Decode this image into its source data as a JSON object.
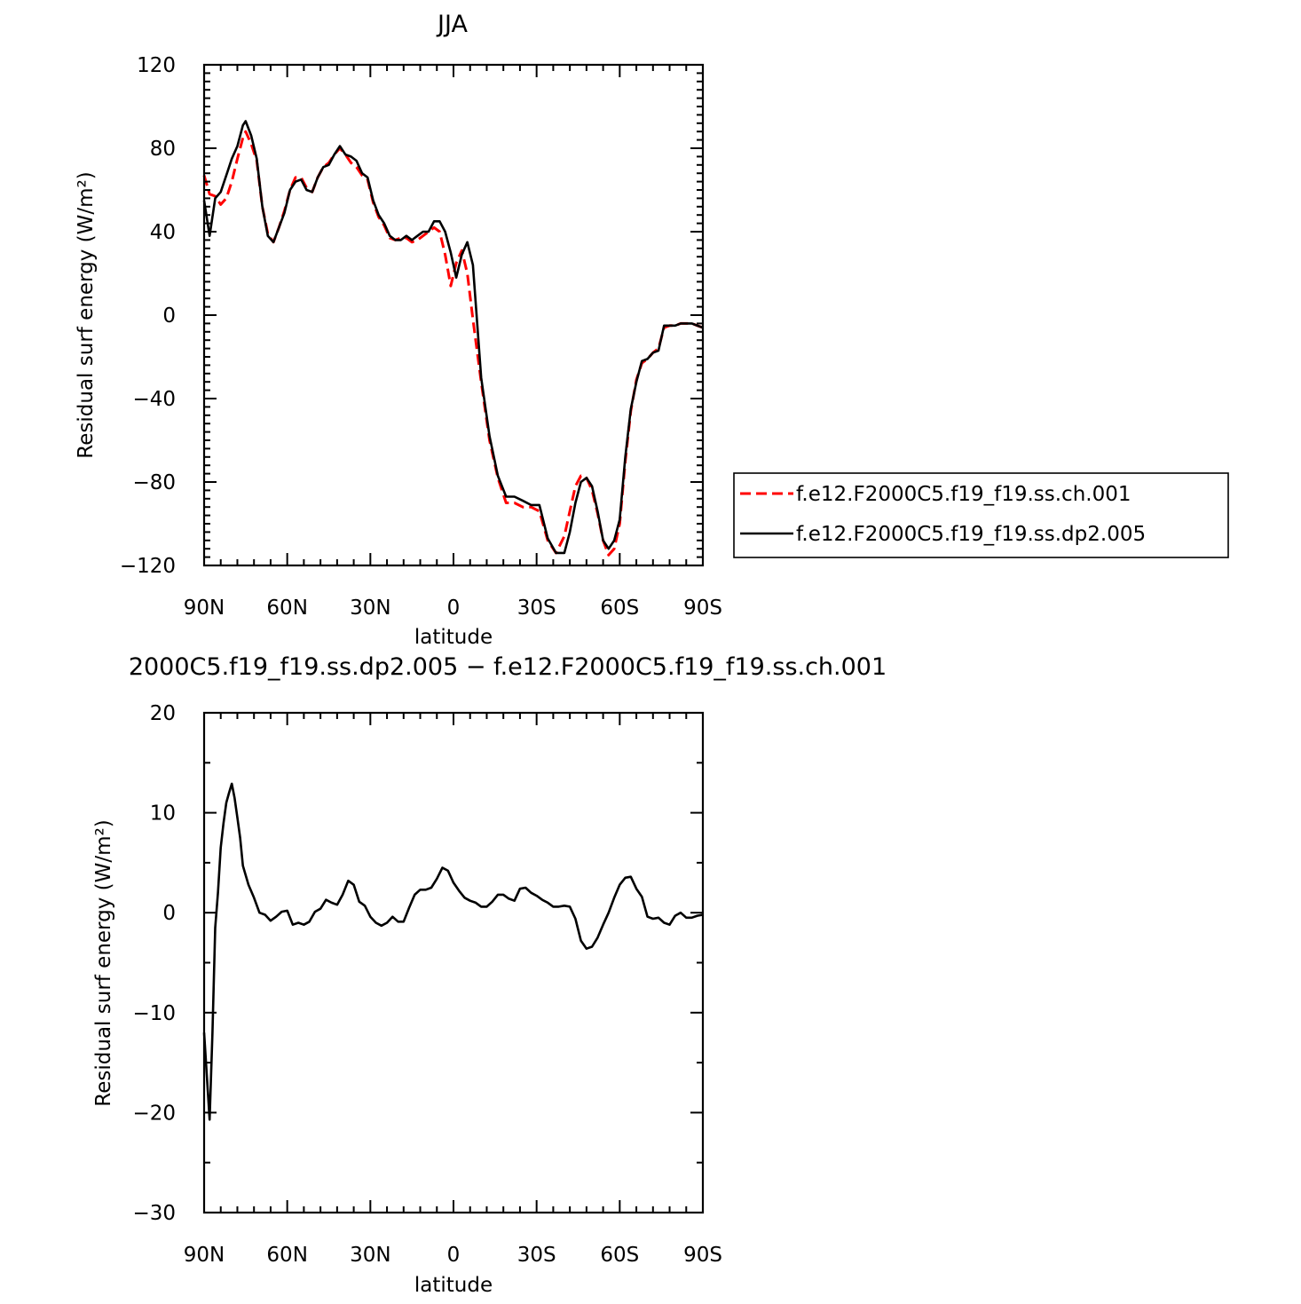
{
  "chart_data": [
    {
      "type": "line",
      "title": "JJA",
      "xlabel": "latitude",
      "ylabel": "Residual surf energy (W/m²)",
      "xlim": [
        90,
        -90
      ],
      "ylim": [
        -120,
        120
      ],
      "xticks": [
        90,
        60,
        30,
        0,
        -30,
        -60,
        -90
      ],
      "xtick_labels": [
        "90N",
        "60N",
        "30N",
        "0",
        "30S",
        "60S",
        "90S"
      ],
      "yticks": [
        120,
        80,
        40,
        0,
        -40,
        -80,
        -120
      ],
      "ytick_labels": [
        "120",
        "80",
        "40",
        "0",
        "−40",
        "−80",
        "−120"
      ],
      "legend_position": "right",
      "series": [
        {
          "name": "f.e12.F2000C5.f19_f19.ss.ch.001",
          "color": "#ff0000",
          "style": "dashed",
          "x": [
            90,
            88,
            86,
            84,
            82,
            80,
            78,
            76,
            75,
            73,
            71,
            69,
            67,
            65,
            63,
            61,
            59,
            57,
            55,
            53,
            51,
            49,
            47,
            45,
            43,
            41,
            39,
            37,
            35,
            33,
            31,
            29,
            27,
            25,
            23,
            21,
            19,
            17,
            15,
            13,
            11,
            9,
            7,
            5,
            3,
            1,
            -1,
            -3,
            -5,
            -7,
            -10,
            -13,
            -16,
            -19,
            -22,
            -25,
            -28,
            -31,
            -34,
            -37,
            -40,
            -42,
            -44,
            -46,
            -48,
            -50,
            -52,
            -54,
            -56,
            -58,
            -60,
            -62,
            -64,
            -66,
            -68,
            -70,
            -72,
            -74,
            -76,
            -78,
            -80,
            -82,
            -84,
            -86,
            -88,
            -90
          ],
          "y": [
            67,
            58,
            57,
            53,
            56,
            64,
            75,
            85,
            88,
            82,
            74,
            52,
            39,
            35,
            42,
            50,
            60,
            66,
            66,
            61,
            59,
            66,
            71,
            73,
            77,
            80,
            77,
            73,
            71,
            67,
            65,
            54,
            47,
            43,
            37,
            36,
            37,
            37,
            35,
            36,
            38,
            40,
            42,
            40,
            29,
            14,
            25,
            31,
            20,
            -2,
            -32,
            -60,
            -78,
            -90,
            -90,
            -92,
            -92,
            -94,
            -108,
            -114,
            -106,
            -94,
            -82,
            -77,
            -78,
            -84,
            -95,
            -108,
            -115,
            -112,
            -100,
            -70,
            -46,
            -31,
            -23,
            -21,
            -18,
            -16,
            -6,
            -5,
            -5,
            -4,
            -4,
            -4,
            -5,
            -6
          ]
        },
        {
          "name": "f.e12.F2000C5.f19_f19.ss.dp2.005",
          "color": "#000000",
          "style": "solid",
          "x": [
            90,
            88,
            86,
            84,
            82,
            80,
            78,
            76,
            75,
            73,
            71,
            69,
            67,
            65,
            63,
            61,
            59,
            57,
            55,
            53,
            51,
            49,
            47,
            45,
            43,
            41,
            39,
            37,
            35,
            33,
            31,
            29,
            27,
            25,
            23,
            21,
            19,
            17,
            15,
            13,
            11,
            9,
            7,
            5,
            3,
            1,
            -1,
            -3,
            -5,
            -7,
            -10,
            -13,
            -16,
            -19,
            -22,
            -25,
            -28,
            -31,
            -34,
            -37,
            -40,
            -42,
            -44,
            -46,
            -48,
            -50,
            -52,
            -54,
            -56,
            -58,
            -60,
            -62,
            -64,
            -66,
            -68,
            -70,
            -72,
            -74,
            -76,
            -78,
            -80,
            -82,
            -84,
            -86,
            -88,
            -90
          ],
          "y": [
            55,
            38,
            56,
            59,
            67,
            75,
            81,
            91,
            93,
            86,
            75,
            52,
            38,
            35,
            42,
            49,
            60,
            64,
            65,
            60,
            59,
            66,
            71,
            72,
            77,
            81,
            77,
            76,
            74,
            68,
            66,
            55,
            48,
            44,
            38,
            36,
            36,
            38,
            36,
            38,
            40,
            40,
            45,
            45,
            40,
            30,
            18,
            29,
            35,
            24,
            -30,
            -58,
            -77,
            -87,
            -87,
            -89,
            -91,
            -91,
            -107,
            -114,
            -114,
            -104,
            -90,
            -80,
            -78,
            -82,
            -94,
            -108,
            -112,
            -108,
            -98,
            -68,
            -45,
            -32,
            -22,
            -21,
            -18,
            -17,
            -5,
            -5,
            -5,
            -4,
            -4,
            -4,
            -5,
            -6
          ]
        }
      ]
    },
    {
      "type": "line",
      "title": "2000C5.f19_f19.ss.dp2.005 − f.e12.F2000C5.f19_f19.ss.ch.001",
      "xlabel": "latitude",
      "ylabel": "Residual surf energy (W/m²)",
      "xlim": [
        90,
        -90
      ],
      "ylim": [
        -30,
        20
      ],
      "xticks": [
        90,
        60,
        30,
        0,
        -30,
        -60,
        -90
      ],
      "xtick_labels": [
        "90N",
        "60N",
        "30N",
        "0",
        "30S",
        "60S",
        "90S"
      ],
      "yticks": [
        20,
        10,
        0,
        -10,
        -20,
        -30
      ],
      "ytick_labels": [
        "20",
        "10",
        "0",
        "−10",
        "−20",
        "−30"
      ],
      "series": [
        {
          "color": "#000000",
          "style": "solid",
          "x": [
            90,
            88,
            87,
            86,
            85,
            84,
            83,
            82,
            81,
            80,
            79,
            78,
            77,
            76,
            74,
            72,
            70,
            68,
            66,
            64,
            62,
            60,
            58,
            56,
            54,
            52,
            50,
            48,
            46,
            44,
            42,
            40,
            38,
            36,
            34,
            32,
            30,
            28,
            26,
            24,
            22,
            20,
            18,
            16,
            14,
            12,
            10,
            8,
            6,
            4,
            2,
            0,
            -2,
            -4,
            -6,
            -8,
            -10,
            -12,
            -14,
            -16,
            -18,
            -20,
            -22,
            -24,
            -26,
            -28,
            -30,
            -32,
            -34,
            -36,
            -38,
            -40,
            -42,
            -44,
            -46,
            -48,
            -50,
            -52,
            -54,
            -56,
            -58,
            -60,
            -62,
            -64,
            -66,
            -68,
            -70,
            -72,
            -74,
            -76,
            -78,
            -80,
            -82,
            -84,
            -86,
            -88,
            -90
          ],
          "y": [
            -12,
            -20.7,
            -12,
            -1.5,
            2,
            6.5,
            9,
            11,
            12,
            12.9,
            11.5,
            9.5,
            7.5,
            4.7,
            2.8,
            1.5,
            0,
            -0.2,
            -0.8,
            -0.4,
            0.1,
            0.2,
            -1.2,
            -1,
            -1.2,
            -0.9,
            0.1,
            0.4,
            1.3,
            1,
            0.8,
            1.8,
            3.2,
            2.8,
            1.1,
            0.7,
            -0.4,
            -1,
            -1.3,
            -1,
            -0.4,
            -0.9,
            -0.9,
            0.5,
            1.8,
            2.3,
            2.3,
            2.5,
            3.4,
            4.5,
            4.2,
            3,
            2.2,
            1.5,
            1.2,
            1,
            0.6,
            0.6,
            1.1,
            1.8,
            1.8,
            1.4,
            1.2,
            2.4,
            2.5,
            2,
            1.7,
            1.3,
            1,
            0.6,
            0.6,
            0.7,
            0.6,
            -0.6,
            -2.8,
            -3.6,
            -3.4,
            -2.5,
            -1.2,
            0,
            1.5,
            2.8,
            3.5,
            3.6,
            2.4,
            1.6,
            -0.4,
            -0.6,
            -0.5,
            -1,
            -1.2,
            -0.3,
            0,
            -0.5,
            -0.5,
            -0.3,
            -0.2
          ]
        }
      ]
    }
  ]
}
